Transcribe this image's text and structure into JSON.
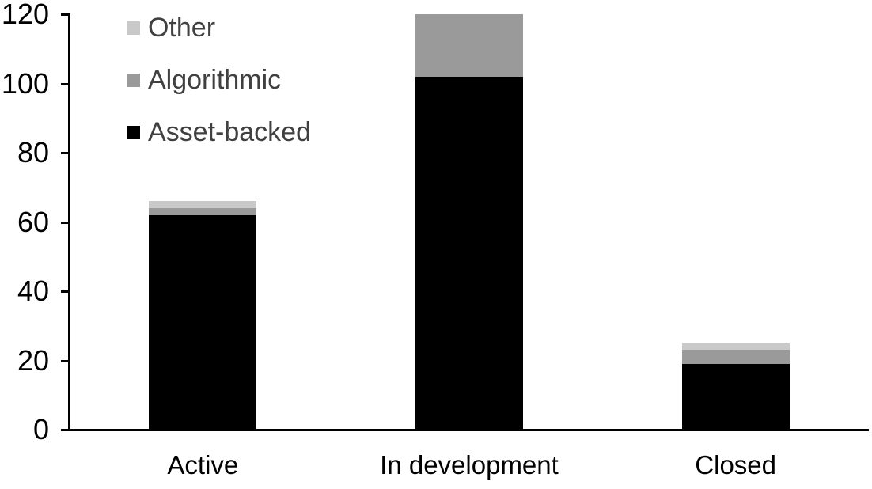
{
  "chart_data": {
    "type": "bar",
    "stacked": true,
    "title": "",
    "categories": [
      "Active",
      "In development",
      "Closed"
    ],
    "series": [
      {
        "name": "Asset-backed",
        "color": "#000000",
        "values": [
          62,
          102,
          19
        ]
      },
      {
        "name": "Algorithmic",
        "color": "#9a9a9a",
        "values": [
          2,
          18,
          4
        ]
      },
      {
        "name": "Other",
        "color": "#c9c9c9",
        "values": [
          2,
          0,
          2
        ]
      }
    ],
    "totals": [
      66,
      120,
      25
    ],
    "ylim": [
      0,
      120
    ],
    "ytick_step": 20,
    "ytick_labels": [
      "0",
      "20",
      "40",
      "60",
      "80",
      "100",
      "120"
    ],
    "grid": false,
    "legend_position": "top-left-inside",
    "legend_order_top_to_bottom": [
      "Other",
      "Algorithmic",
      "Asset-backed"
    ],
    "axis_color": "#000000",
    "tick_label_color": "#000000",
    "legend_text_color": "#404040",
    "background_color": "#ffffff"
  }
}
